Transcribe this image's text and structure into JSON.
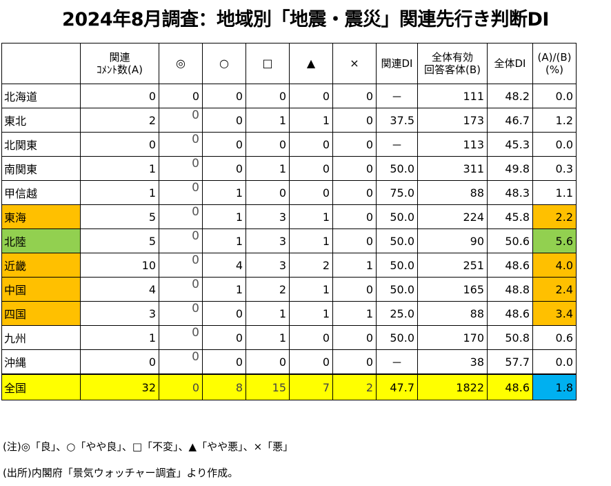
{
  "title": "2024年8月調査：地域別「地震・震災」関連先行き判断DI",
  "table": {
    "headers": {
      "region": "",
      "related_comments": [
        "関連",
        "ｺﾒﾝﾄ数(A)"
      ],
      "very_good": "◎",
      "good": "○",
      "unchanged": "□",
      "bad": "▲",
      "very_bad": "×",
      "related_di": "関連DI",
      "total_responses": [
        "全体有効",
        "回答客体(B)"
      ],
      "total_di": "全体DI",
      "ratio": [
        "(A)/(B)",
        "(%)"
      ]
    },
    "rows": [
      {
        "region": "北海道",
        "a": "0",
        "vg": "0",
        "g": "0",
        "u": "0",
        "b": "0",
        "vb": "0",
        "di": "－",
        "total": "111",
        "tdi": "48.2",
        "ratio": "0.0",
        "hl_region": "",
        "hl_ratio": "",
        "vg_alt": false
      },
      {
        "region": "東北",
        "a": "2",
        "vg": "0",
        "g": "0",
        "u": "1",
        "b": "1",
        "vb": "0",
        "di": "37.5",
        "total": "173",
        "tdi": "46.7",
        "ratio": "1.2",
        "hl_region": "",
        "hl_ratio": "",
        "vg_alt": true
      },
      {
        "region": "北関東",
        "a": "0",
        "vg": "0",
        "g": "0",
        "u": "0",
        "b": "0",
        "vb": "0",
        "di": "－",
        "total": "113",
        "tdi": "45.3",
        "ratio": "0.0",
        "hl_region": "",
        "hl_ratio": "",
        "vg_alt": true
      },
      {
        "region": "南関東",
        "a": "1",
        "vg": "0",
        "g": "0",
        "u": "1",
        "b": "0",
        "vb": "0",
        "di": "50.0",
        "total": "311",
        "tdi": "49.8",
        "ratio": "0.3",
        "hl_region": "",
        "hl_ratio": "",
        "vg_alt": true
      },
      {
        "region": "甲信越",
        "a": "1",
        "vg": "0",
        "g": "1",
        "u": "0",
        "b": "0",
        "vb": "0",
        "di": "75.0",
        "total": "88",
        "tdi": "48.3",
        "ratio": "1.1",
        "hl_region": "",
        "hl_ratio": "",
        "vg_alt": true
      },
      {
        "region": "東海",
        "a": "5",
        "vg": "0",
        "g": "1",
        "u": "3",
        "b": "1",
        "vb": "0",
        "di": "50.0",
        "total": "224",
        "tdi": "45.8",
        "ratio": "2.2",
        "hl_region": "orange",
        "hl_ratio": "orange",
        "vg_alt": true
      },
      {
        "region": "北陸",
        "a": "5",
        "vg": "0",
        "g": "1",
        "u": "3",
        "b": "1",
        "vb": "0",
        "di": "50.0",
        "total": "90",
        "tdi": "50.6",
        "ratio": "5.6",
        "hl_region": "green",
        "hl_ratio": "green",
        "vg_alt": true
      },
      {
        "region": "近畿",
        "a": "10",
        "vg": "0",
        "g": "4",
        "u": "3",
        "b": "2",
        "vb": "1",
        "di": "50.0",
        "total": "251",
        "tdi": "48.6",
        "ratio": "4.0",
        "hl_region": "orange",
        "hl_ratio": "orange",
        "vg_alt": true
      },
      {
        "region": "中国",
        "a": "4",
        "vg": "0",
        "g": "1",
        "u": "2",
        "b": "1",
        "vb": "0",
        "di": "50.0",
        "total": "165",
        "tdi": "48.8",
        "ratio": "2.4",
        "hl_region": "orange",
        "hl_ratio": "orange",
        "vg_alt": true
      },
      {
        "region": "四国",
        "a": "3",
        "vg": "0",
        "g": "0",
        "u": "1",
        "b": "1",
        "vb": "1",
        "di": "25.0",
        "total": "88",
        "tdi": "48.6",
        "ratio": "3.4",
        "hl_region": "orange",
        "hl_ratio": "orange",
        "vg_alt": true
      },
      {
        "region": "九州",
        "a": "1",
        "vg": "0",
        "g": "0",
        "u": "1",
        "b": "0",
        "vb": "0",
        "di": "50.0",
        "total": "170",
        "tdi": "50.8",
        "ratio": "0.6",
        "hl_region": "",
        "hl_ratio": "",
        "vg_alt": true
      },
      {
        "region": "沖縄",
        "a": "0",
        "vg": "0",
        "g": "0",
        "u": "0",
        "b": "0",
        "vb": "0",
        "di": "－",
        "total": "38",
        "tdi": "57.7",
        "ratio": "0.0",
        "hl_region": "",
        "hl_ratio": "",
        "vg_alt": true
      }
    ],
    "total": {
      "region": "全国",
      "a": "32",
      "vg": "0",
      "g": "8",
      "u": "15",
      "b": "7",
      "vb": "2",
      "di": "47.7",
      "total": "1822",
      "tdi": "48.6",
      "ratio": "1.8"
    }
  },
  "notes": {
    "legend": "(注)◎「良」、○「やや良」、□「不変」、▲「やや悪」、×「悪」",
    "source": "(出所)内閣府「景気ウォッチャー調査」より作成。"
  },
  "colors": {
    "orange": "#ffc000",
    "green": "#92d050",
    "blue": "#00b0f0",
    "yellow": "#ffff00"
  }
}
